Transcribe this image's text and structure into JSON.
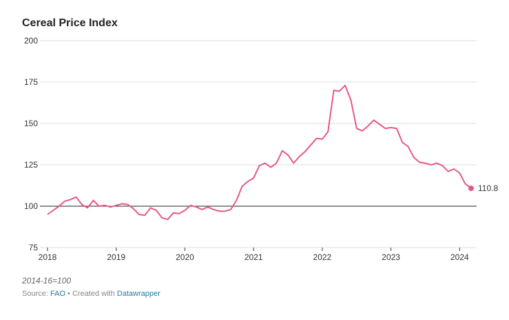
{
  "chart_data": {
    "type": "line",
    "title": "Cereal Price Index",
    "note": "2014-16=100",
    "source": {
      "label": "Source:",
      "name": "FAO"
    },
    "credit": {
      "label": "Created with",
      "name": "Datawrapper"
    },
    "color": "#e5578a",
    "x": [
      2018,
      2018.083,
      2018.167,
      2018.25,
      2018.333,
      2018.417,
      2018.5,
      2018.583,
      2018.667,
      2018.75,
      2018.833,
      2018.917,
      2019,
      2019.083,
      2019.167,
      2019.25,
      2019.333,
      2019.417,
      2019.5,
      2019.583,
      2019.667,
      2019.75,
      2019.833,
      2019.917,
      2020,
      2020.083,
      2020.167,
      2020.25,
      2020.333,
      2020.417,
      2020.5,
      2020.583,
      2020.667,
      2020.75,
      2020.833,
      2020.917,
      2021,
      2021.083,
      2021.167,
      2021.25,
      2021.333,
      2021.417,
      2021.5,
      2021.583,
      2021.667,
      2021.75,
      2021.833,
      2021.917,
      2022,
      2022.083,
      2022.167,
      2022.25,
      2022.333,
      2022.417,
      2022.5,
      2022.583,
      2022.667,
      2022.75,
      2022.833,
      2022.917,
      2023,
      2023.083,
      2023.167,
      2023.25,
      2023.333,
      2023.417,
      2023.5,
      2023.583,
      2023.667,
      2023.75,
      2023.833,
      2023.917,
      2024,
      2024.083,
      2024.167
    ],
    "values": [
      95,
      97.5,
      100,
      103,
      104,
      105.5,
      101,
      99,
      103.5,
      100,
      100.5,
      99.5,
      100.5,
      101.5,
      101,
      98.5,
      95,
      94.5,
      99,
      97.5,
      93,
      92,
      96,
      95.5,
      97.5,
      100.5,
      99.5,
      98,
      99.5,
      98,
      97,
      97,
      98,
      103.5,
      112,
      115,
      117,
      124.5,
      126,
      123.5,
      126,
      133.5,
      131,
      126,
      130,
      133,
      137,
      141,
      140.5,
      145,
      170,
      169.5,
      173,
      164,
      147,
      145.5,
      148.5,
      152,
      149.5,
      147,
      147.5,
      147,
      138.5,
      136,
      129.5,
      126.5,
      126,
      125,
      126,
      124.5,
      121,
      122.5,
      120,
      113.5,
      110.8
    ],
    "xlim": [
      2018,
      2024.167
    ],
    "xticks": [
      2018,
      2019,
      2020,
      2021,
      2022,
      2023,
      2024
    ],
    "ylim": [
      75,
      200
    ],
    "yticks": [
      75,
      100,
      125,
      150,
      175,
      200
    ],
    "grid": true,
    "reference_line": 100
  }
}
